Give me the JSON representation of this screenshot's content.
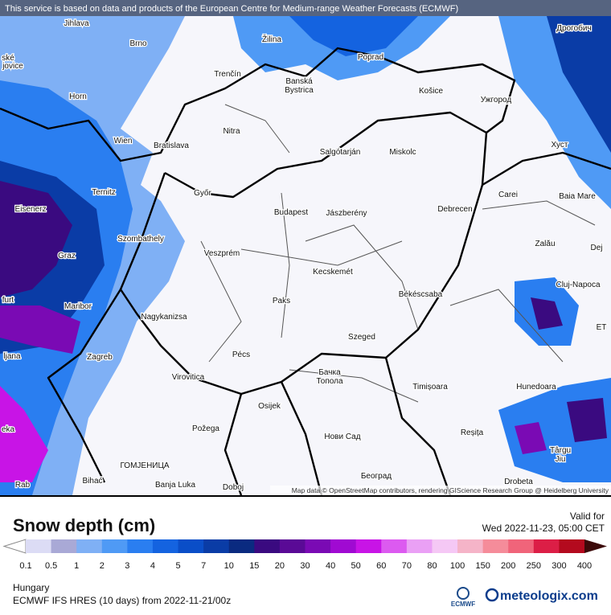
{
  "banner": "This service is based on data and products of the European Centre for Medium-range Weather Forecasts (ECMWF)",
  "cities": [
    "Jihlava",
    "Brno",
    "Žilina",
    "Дрогобич",
    "ské",
    "jovice",
    "Poprad",
    "Trenčín",
    "Banská",
    "Bystrica",
    "Košice",
    "Ужгород",
    "Horn",
    "Nitra",
    "Wien",
    "Bratislava",
    "Salgótarján",
    "Miskolc",
    "Хуст",
    "Ternitz",
    "Győr",
    "Carei",
    "Baia Mare",
    "Eisenerz",
    "Budapest",
    "Jászberény",
    "Debrecen",
    "Szombathely",
    "Zalău",
    "Graz",
    "Veszprém",
    "Dej",
    "Kecskemét",
    "Cluj-Napoca",
    "Békéscsaba",
    "furt",
    "Paks",
    "Maribor",
    "Nagykanizsa",
    "ET",
    "Szeged",
    "Pécs",
    "ljana",
    "Zagreb",
    "Бачка",
    "Топола",
    "Virovitica",
    "Timișoara",
    "Hunedoara",
    "Osijek",
    "eka",
    "Požega",
    "Reșița",
    "Нови Сад",
    "Târgu",
    "Jiu",
    "ГОМЈЕНИЦА",
    "Bihać",
    "Banja Luka",
    "Doboj",
    "Београд",
    "Drobeta",
    "Rab"
  ],
  "attribution": "Map data © OpenStreetMap contributors, rendering GIScience Research Group @ Heidelberg University",
  "title": "Snow depth (cm)",
  "valid_label": "Valid for",
  "valid_time": "Wed 2022-11-23, 05:00 CET",
  "legend": {
    "labels": [
      "0.1",
      "0.5",
      "1",
      "2",
      "3",
      "4",
      "5",
      "7",
      "10",
      "15",
      "20",
      "30",
      "40",
      "50",
      "60",
      "70",
      "80",
      "100",
      "150",
      "200",
      "250",
      "300",
      "400"
    ],
    "colors": [
      "#dcdcf5",
      "#a9a9d6",
      "#7fb0f5",
      "#4f9af5",
      "#2a7ef0",
      "#1463e0",
      "#0a4ec8",
      "#0a3ca6",
      "#0a2a80",
      "#3a0a80",
      "#5a0a96",
      "#7a0ab4",
      "#a00ad2",
      "#c814e6",
      "#dc5af0",
      "#eaa0f5",
      "#f5c8f5",
      "#f5b4c8",
      "#f58c9a",
      "#f0647a",
      "#dc1e46",
      "#b40a1e"
    ],
    "extra_colors": [
      "#960a0a",
      "#780a0a",
      "#5a0a0a"
    ],
    "over_color": "#3c0a0a",
    "under_color": "#ffffff"
  },
  "region": "Hungary",
  "model": "ECMWF IFS HRES (10 days) from  2022-11-21/00z",
  "ecmwf": "ECMWF",
  "brand": "meteologix.com"
}
